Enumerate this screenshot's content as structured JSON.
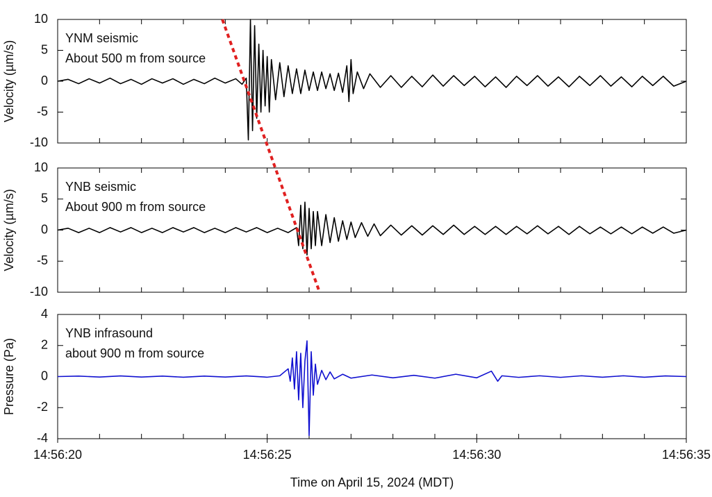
{
  "chart_data": [
    {
      "type": "line",
      "texts": [
        "YNM seismic",
        "About 500 m from source"
      ],
      "y_label": "Velocity (µm/s)",
      "xlim": [
        20,
        35
      ],
      "xminorticks": [
        20,
        21,
        22,
        23,
        24,
        25,
        26,
        27,
        28,
        29,
        30,
        31,
        32,
        33,
        34,
        35
      ],
      "ylim": [
        -10,
        10
      ],
      "yticks": [
        -10,
        -5,
        0,
        5,
        10
      ],
      "reference_line": {
        "x": [
          23.93,
          26.25
        ],
        "color": "#e02020"
      },
      "series": [
        {
          "color": "#000000",
          "x": [
            20,
            20.25,
            20.5,
            20.75,
            21,
            21.25,
            21.5,
            21.75,
            22,
            22.25,
            22.5,
            22.75,
            23,
            23.25,
            23.5,
            23.75,
            24,
            24.25,
            24.4,
            24.5,
            24.55,
            24.6,
            24.65,
            24.7,
            24.75,
            24.8,
            24.85,
            24.9,
            24.95,
            25,
            25.05,
            25.1,
            25.2,
            25.3,
            25.4,
            25.5,
            25.6,
            25.7,
            25.8,
            25.9,
            26,
            26.1,
            26.2,
            26.3,
            26.4,
            26.5,
            26.6,
            26.7,
            26.8,
            26.9,
            26.95,
            27,
            27.05,
            27.15,
            27.3,
            27.45,
            27.7,
            27.95,
            28.2,
            28.45,
            28.7,
            28.95,
            29.2,
            29.45,
            29.7,
            29.95,
            30.2,
            30.45,
            30.7,
            30.95,
            31.2,
            31.45,
            31.7,
            31.95,
            32.2,
            32.45,
            32.7,
            32.95,
            33.2,
            33.45,
            33.7,
            33.95,
            34.2,
            34.45,
            34.7,
            35
          ],
          "values": [
            0,
            0.3,
            -0.4,
            0.4,
            -0.3,
            0.5,
            -0.4,
            0.3,
            -0.5,
            0.4,
            -0.3,
            0.4,
            -0.5,
            0.3,
            -0.4,
            0.5,
            -0.3,
            0.4,
            -0.5,
            0.5,
            -9.5,
            10,
            -8,
            9,
            -6,
            6,
            -5,
            5,
            -4,
            4,
            -5,
            3.5,
            -3,
            3,
            -2.5,
            2.5,
            -2,
            2,
            -2,
            1.8,
            -1.5,
            1.5,
            -1.5,
            1.5,
            -1.2,
            1.2,
            -1.5,
            1.3,
            -1.8,
            2.5,
            -3.3,
            3.5,
            -2,
            1.5,
            -1.2,
            1.2,
            -1,
            0.9,
            -1,
            0.8,
            -0.9,
            1,
            -0.8,
            0.9,
            -0.7,
            0.8,
            -0.9,
            0.7,
            -1,
            0.8,
            -0.7,
            0.9,
            -0.8,
            0.7,
            -0.9,
            0.8,
            -0.7,
            0.9,
            -0.8,
            0.7,
            -0.9,
            0.8,
            -0.7,
            0.8,
            -0.8,
            0
          ]
        }
      ]
    },
    {
      "type": "line",
      "texts": [
        "YNB seismic",
        "About 900 m from source"
      ],
      "y_label": "Velocity (µm/s)",
      "xlim": [
        20,
        35
      ],
      "xminorticks": [
        20,
        21,
        22,
        23,
        24,
        25,
        26,
        27,
        28,
        29,
        30,
        31,
        32,
        33,
        34,
        35
      ],
      "ylim": [
        -10,
        10
      ],
      "yticks": [
        -10,
        -5,
        0,
        5,
        10
      ],
      "series": [
        {
          "color": "#000000",
          "x": [
            20,
            20.25,
            20.5,
            20.75,
            21,
            21.25,
            21.5,
            21.75,
            22,
            22.25,
            22.5,
            22.75,
            23,
            23.25,
            23.5,
            23.75,
            24,
            24.25,
            24.5,
            24.75,
            25,
            25.25,
            25.5,
            25.7,
            25.75,
            25.8,
            25.85,
            25.9,
            25.95,
            26,
            26.05,
            26.1,
            26.15,
            26.2,
            26.3,
            26.4,
            26.5,
            26.6,
            26.7,
            26.8,
            26.9,
            27,
            27.1,
            27.25,
            27.4,
            27.55,
            27.7,
            27.95,
            28.2,
            28.45,
            28.7,
            28.95,
            29.2,
            29.45,
            29.7,
            29.95,
            30.2,
            30.45,
            30.7,
            30.95,
            31.2,
            31.45,
            31.7,
            31.95,
            32.2,
            32.45,
            32.7,
            32.95,
            33.2,
            33.45,
            33.7,
            33.95,
            34.2,
            34.45,
            34.7,
            35
          ],
          "values": [
            0,
            0.3,
            -0.4,
            0.3,
            -0.4,
            0.4,
            -0.3,
            0.4,
            -0.4,
            0.3,
            -0.4,
            0.4,
            -0.3,
            0.4,
            -0.4,
            0.3,
            -0.4,
            0.4,
            -0.3,
            0.4,
            -0.4,
            0.3,
            -0.4,
            0.4,
            -2.5,
            4,
            -3,
            4.5,
            -4,
            3.5,
            -3,
            3,
            -2.5,
            3,
            -2.5,
            2.5,
            -2,
            2,
            -1.8,
            1.5,
            -1.5,
            1.3,
            -1.2,
            1.2,
            -1,
            1,
            -0.9,
            0.8,
            -0.8,
            0.7,
            -0.8,
            0.7,
            -0.7,
            0.8,
            -0.7,
            0.6,
            -0.7,
            0.6,
            -0.7,
            0.6,
            -0.6,
            0.7,
            -0.6,
            0.6,
            -0.7,
            0.6,
            -0.6,
            0.5,
            -0.6,
            0.5,
            -0.6,
            0.5,
            -0.5,
            0.5,
            -0.5,
            0
          ]
        }
      ]
    },
    {
      "type": "line",
      "texts": [
        "YNB infrasound",
        "about 900 m from source"
      ],
      "y_label": "Pressure (Pa)",
      "x_label": "Time on April 15, 2024 (MDT)",
      "xlim": [
        20,
        35
      ],
      "xminorticks": [
        20,
        21,
        22,
        23,
        24,
        25,
        26,
        27,
        28,
        29,
        30,
        31,
        32,
        33,
        34,
        35
      ],
      "xticks": [
        {
          "value": 20,
          "label": "14:56:20"
        },
        {
          "value": 25,
          "label": "14:56:25"
        },
        {
          "value": 30,
          "label": "14:56:30"
        },
        {
          "value": 35,
          "label": "14:56:35"
        }
      ],
      "ylim": [
        -4,
        4
      ],
      "yticks": [
        -4,
        -2,
        0,
        2,
        4
      ],
      "series": [
        {
          "color": "#1010d0",
          "x": [
            20,
            20.5,
            21,
            21.5,
            22,
            22.5,
            23,
            23.5,
            24,
            24.5,
            25,
            25.3,
            25.5,
            25.55,
            25.6,
            25.65,
            25.7,
            25.75,
            25.8,
            25.85,
            25.9,
            25.95,
            26,
            26.05,
            26.1,
            26.15,
            26.2,
            26.3,
            26.4,
            26.5,
            26.6,
            26.8,
            27,
            27.5,
            28,
            28.5,
            29,
            29.5,
            30,
            30.35,
            30.5,
            30.6,
            31,
            31.5,
            32,
            32.5,
            33,
            33.5,
            34,
            34.5,
            35
          ],
          "values": [
            0,
            0.03,
            -0.03,
            0.04,
            -0.03,
            0.03,
            -0.04,
            0.03,
            -0.03,
            0.04,
            -0.04,
            0.05,
            0.5,
            -0.3,
            1.2,
            -0.8,
            1.6,
            -1.5,
            1.5,
            -2,
            1,
            2.3,
            -3.8,
            1.6,
            -1.2,
            0.8,
            -0.5,
            0.4,
            -0.2,
            0.3,
            -0.15,
            0.15,
            -0.1,
            0.1,
            -0.08,
            0.08,
            -0.1,
            0.15,
            -0.08,
            0.35,
            -0.3,
            0.05,
            -0.05,
            0.05,
            -0.05,
            0.05,
            -0.04,
            0.05,
            -0.04,
            0.04,
            0
          ]
        }
      ]
    }
  ]
}
